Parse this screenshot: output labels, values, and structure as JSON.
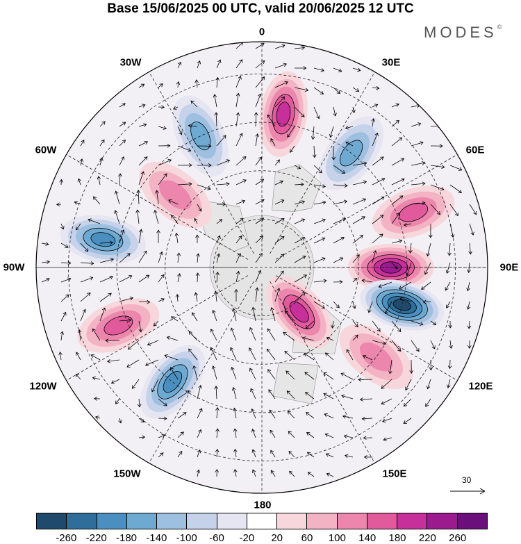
{
  "title": "Base 15/06/2025 00 UTC, valid 20/06/2025 12 UTC",
  "brand": "MODES",
  "brand_mark": "©",
  "longitude_labels": {
    "lon_0": "0",
    "lon_30e": "30E",
    "lon_60e": "60E",
    "lon_90e": "90E",
    "lon_120e": "120E",
    "lon_150e": "150E",
    "lon_180": "180",
    "lon_150w": "150W",
    "lon_120w": "120W",
    "lon_90w": "90W",
    "lon_60w": "60W",
    "lon_30w": "30W"
  },
  "reference_vector": {
    "label": "30"
  },
  "colorbar": {
    "colors": [
      "#1f4a6b",
      "#2f6e9a",
      "#4a8fc0",
      "#6ea9d2",
      "#9dbfe0",
      "#c5d2ea",
      "#e6e6f2",
      "#ffffff",
      "#f8d7dc",
      "#f3b3c4",
      "#ec86ad",
      "#e15a9c",
      "#c7309a",
      "#9b1b8f",
      "#6b0f7a"
    ],
    "ticks": [
      "-260",
      "-220",
      "-180",
      "-140",
      "-100",
      "-60",
      "-20",
      "20",
      "60",
      "100",
      "140",
      "180",
      "220",
      "260"
    ]
  },
  "anomaly_blobs": [
    {
      "name": "positive-anomaly",
      "lon": 8,
      "lat": 42,
      "level": 12
    },
    {
      "name": "negative-anomaly",
      "lon": 38,
      "lat": 45,
      "level": 3
    },
    {
      "name": "negative-anomaly",
      "lon": -25,
      "lat": 45,
      "level": 3
    },
    {
      "name": "positive-anomaly",
      "lon": -50,
      "lat": 55,
      "level": 10
    },
    {
      "name": "negative-anomaly",
      "lon": -80,
      "lat": 40,
      "level": 2
    },
    {
      "name": "positive-anomaly",
      "lon": 90,
      "lat": 50,
      "level": 13
    },
    {
      "name": "positive-anomaly",
      "lon": 70,
      "lat": 40,
      "level": 11
    },
    {
      "name": "negative-anomaly",
      "lon": 105,
      "lat": 45,
      "level": 0
    },
    {
      "name": "positive-anomaly",
      "lon": -112,
      "lat": 42,
      "level": 11
    },
    {
      "name": "negative-anomaly",
      "lon": -142,
      "lat": 45,
      "level": 2
    },
    {
      "name": "positive-anomaly",
      "lon": 140,
      "lat": 72,
      "level": 12
    },
    {
      "name": "positive-anomaly",
      "lon": 128,
      "lat": 45,
      "level": 10
    }
  ]
}
